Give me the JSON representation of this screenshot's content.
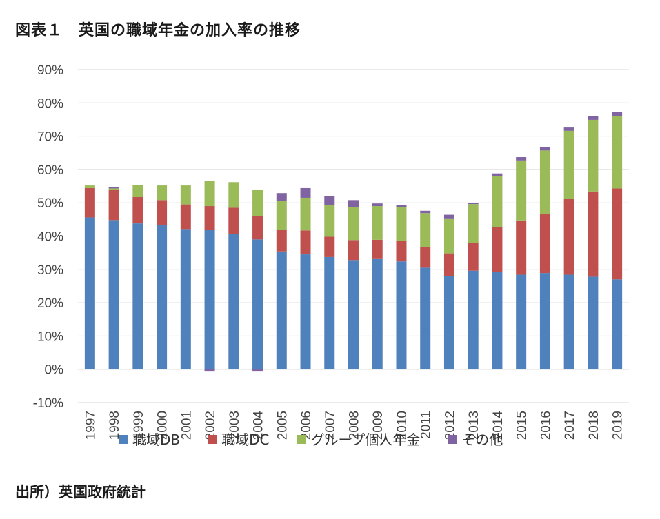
{
  "title": "図表１　英国の職域年金の加入率の推移",
  "source": "出所）英国政府統計",
  "colors": {
    "grid": "#d9d9d9",
    "axis": "#bfbfbf"
  },
  "chart_data": {
    "type": "bar",
    "stacked": true,
    "title": "図表１　英国の職域年金の加入率の推移",
    "xlabel": "",
    "ylabel": "",
    "ylim": [
      -10,
      90
    ],
    "yticks": [
      "-10%",
      "0%",
      "10%",
      "20%",
      "30%",
      "40%",
      "50%",
      "60%",
      "70%",
      "80%",
      "90%"
    ],
    "grid": true,
    "legend_position": "bottom",
    "categories": [
      "1997",
      "1998",
      "1999",
      "2000",
      "2001",
      "2002",
      "2003",
      "2004",
      "2005",
      "2006",
      "2007",
      "2008",
      "2009",
      "2010",
      "2011",
      "2012",
      "2013",
      "2014",
      "2015",
      "2016",
      "2017",
      "2018",
      "2019"
    ],
    "series": [
      {
        "name": "職域DB",
        "color": "#4f81bd",
        "values": [
          45.6,
          44.8,
          43.8,
          43.4,
          42.1,
          41.8,
          40.6,
          39.0,
          35.4,
          34.5,
          33.7,
          32.8,
          33.1,
          32.4,
          30.5,
          28.0,
          29.6,
          29.2,
          28.4,
          28.9,
          28.4,
          27.8,
          27.0
        ]
      },
      {
        "name": "職域DC",
        "color": "#c0504d",
        "values": [
          8.8,
          9.0,
          7.9,
          7.4,
          7.4,
          7.2,
          7.9,
          6.9,
          6.5,
          7.2,
          6.1,
          6.0,
          5.8,
          6.1,
          6.2,
          6.8,
          8.4,
          13.5,
          16.3,
          17.8,
          22.8,
          25.6,
          27.3
        ]
      },
      {
        "name": "グループ個人年金",
        "color": "#9bbb59",
        "values": [
          0.8,
          0.5,
          3.6,
          4.4,
          5.7,
          7.6,
          7.7,
          8.0,
          8.6,
          9.8,
          9.6,
          10.0,
          10.1,
          10.1,
          10.2,
          10.3,
          11.6,
          15.3,
          18.0,
          19.0,
          20.4,
          21.5,
          21.8
        ]
      },
      {
        "name": "その他",
        "color": "#8064a2",
        "values": [
          0,
          0.5,
          0,
          0,
          0,
          -0.5,
          0,
          -0.5,
          2.4,
          2.9,
          2.6,
          2.0,
          0.8,
          0.8,
          0.7,
          1.3,
          0.3,
          0.8,
          1.0,
          1.0,
          1.2,
          1.1,
          1.2
        ]
      }
    ]
  }
}
